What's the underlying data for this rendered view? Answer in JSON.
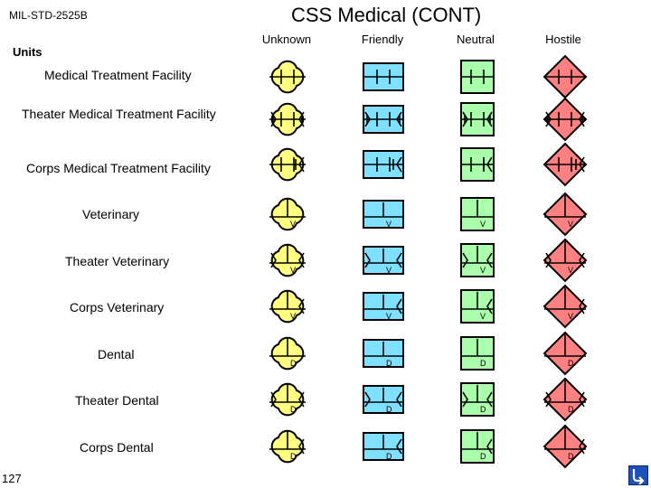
{
  "document": {
    "id": "MIL-STD-2525B",
    "title": "CSS Medical (CONT)",
    "section": "Units",
    "page_number": "127"
  },
  "columns": [
    {
      "label": "Unknown",
      "fill": "#ffff80"
    },
    {
      "label": "Friendly",
      "fill": "#80e0ff"
    },
    {
      "label": "Neutral",
      "fill": "#aaffaa"
    },
    {
      "label": "Hostile",
      "fill": "#ff8080"
    }
  ],
  "rows": [
    {
      "label": "Medical Treatment Facility",
      "symbol": "mtf",
      "echelon": "none"
    },
    {
      "label": "Theater Medical Treatment Facility",
      "symbol": "mtf",
      "echelon": "theater"
    },
    {
      "label": "Corps Medical Treatment Facility",
      "symbol": "mtf",
      "echelon": "corps"
    },
    {
      "label": "Veterinary",
      "symbol": "vet",
      "echelon": "none",
      "glyph": "V"
    },
    {
      "label": "Theater Veterinary",
      "symbol": "vet",
      "echelon": "theater",
      "glyph": "V"
    },
    {
      "label": "Corps Veterinary",
      "symbol": "vet",
      "echelon": "corps",
      "glyph": "V"
    },
    {
      "label": "Dental",
      "symbol": "dental",
      "echelon": "none",
      "glyph": "D"
    },
    {
      "label": "Theater Dental",
      "symbol": "dental",
      "echelon": "theater",
      "glyph": "D"
    },
    {
      "label": "Corps Dental",
      "symbol": "dental",
      "echelon": "corps",
      "glyph": "D"
    }
  ],
  "navigation": {
    "icon": "return-arrow-icon"
  }
}
